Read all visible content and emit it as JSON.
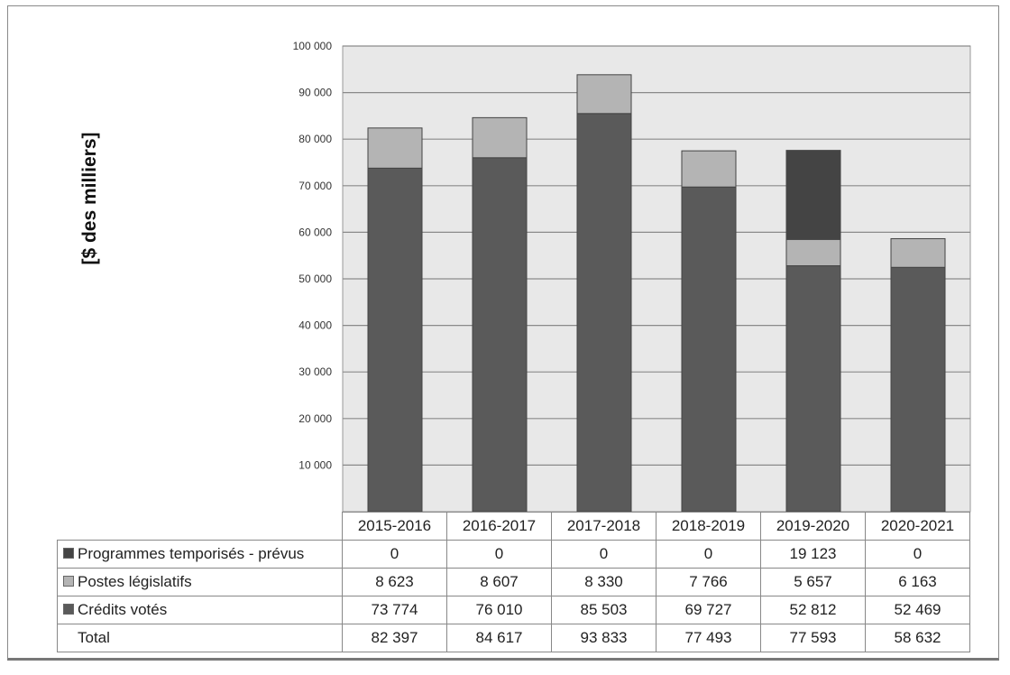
{
  "chart_data": {
    "type": "bar",
    "stacked": true,
    "ylabel": "[$ des milliers]",
    "ylim": [
      0,
      100000
    ],
    "yticks": [
      "10 000",
      "20 000",
      "30 000",
      "40 000",
      "50 000",
      "60 000",
      "70 000",
      "80 000",
      "90 000",
      "100 000"
    ],
    "grid": true,
    "legend": "table-left",
    "categories": [
      "2015-2016",
      "2016-2017",
      "2017-2018",
      "2018-2019",
      "2019-2020",
      "2020-2021"
    ],
    "series": [
      {
        "name": "Crédits votés",
        "color": "#5a5a5a",
        "values": [
          73774,
          76010,
          85503,
          69727,
          52812,
          52469
        ],
        "labels": [
          "73 774",
          "76 010",
          "85 503",
          "69 727",
          "52 812",
          "52 469"
        ]
      },
      {
        "name": "Postes législatifs",
        "color": "#b4b4b4",
        "values": [
          8623,
          8607,
          8330,
          7766,
          5657,
          6163
        ],
        "labels": [
          "8 623",
          "8 607",
          "8 330",
          "7 766",
          "5 657",
          "6 163"
        ]
      },
      {
        "name": "Programmes temporisés - prévus",
        "color": "#444444",
        "values": [
          0,
          0,
          0,
          0,
          19123,
          0
        ],
        "labels": [
          "0",
          "0",
          "0",
          "0",
          "19 123",
          "0"
        ]
      }
    ],
    "total": {
      "name": "Total",
      "labels": [
        "82 397",
        "84 617",
        "93 833",
        "77 493",
        "77 593",
        "58 632"
      ]
    }
  }
}
